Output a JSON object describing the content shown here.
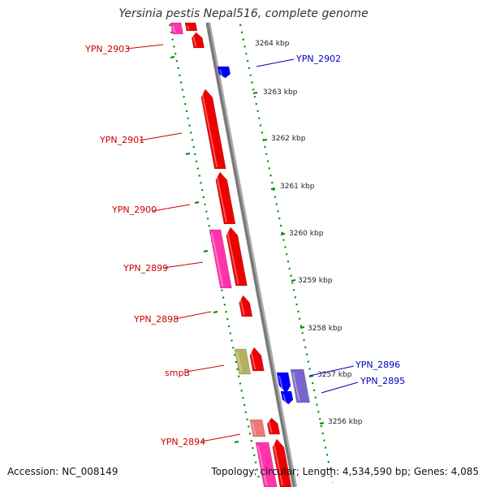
{
  "title": "Yersinia pestis Nepal516, complete genome",
  "accession": "Accession: NC_008149",
  "summary": "Topology: circular; Length: 4,534,590 bp; Genes: 4,085",
  "colors": {
    "reverse_label": "#cc0000",
    "forward_label": "#0000bb",
    "tick": "#008800",
    "backbone": "#777777",
    "feature_red": "#ee0000",
    "feature_pink": "#ff33aa",
    "feature_blue": "#0000ff",
    "feature_khaki": "#b8b060",
    "feature_lavender": "#7766cc",
    "feature_salmon": "#ee7777"
  },
  "kbp_markers": [
    {
      "label": "3264 kbp"
    },
    {
      "label": "3263 kbp"
    },
    {
      "label": "3262 kbp"
    },
    {
      "label": "3261 kbp"
    },
    {
      "label": "3260 kbp"
    },
    {
      "label": "3259 kbp"
    },
    {
      "label": "3258 kbp"
    },
    {
      "label": "3257 kbp"
    },
    {
      "label": "3256 kbp"
    }
  ],
  "gene_labels_reverse": [
    {
      "name": "YPN_2903"
    },
    {
      "name": "YPN_2901"
    },
    {
      "name": "YPN_2900"
    },
    {
      "name": "YPN_2899"
    },
    {
      "name": "YPN_2898"
    },
    {
      "name": "smpB"
    },
    {
      "name": "YPN_2894"
    }
  ],
  "gene_labels_forward": [
    {
      "name": "YPN_2902"
    },
    {
      "name": "YPN_2896"
    },
    {
      "name": "YPN_2895"
    }
  ]
}
